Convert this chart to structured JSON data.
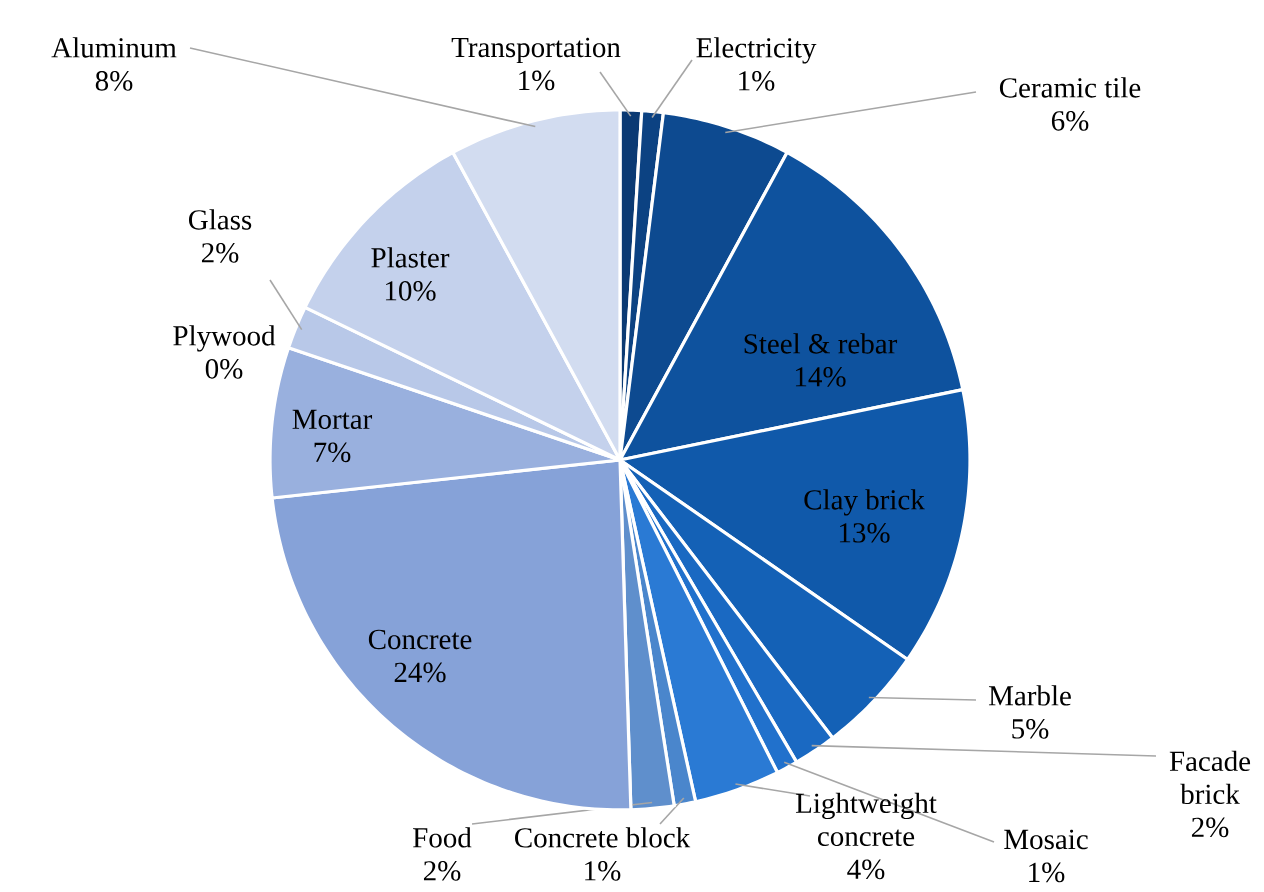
{
  "chart_data": {
    "type": "pie",
    "categories": [
      "Transportation",
      "Electricity",
      "Ceramic tile",
      "Steel & rebar",
      "Clay brick",
      "Marble",
      "Facade brick",
      "Mosaic",
      "Lightweight concrete",
      "Concrete block",
      "Food",
      "Concrete",
      "Mortar",
      "Plywood",
      "Glass",
      "Plaster",
      "Aluminum"
    ],
    "values": [
      1,
      1,
      6,
      14,
      13,
      5,
      2,
      1,
      4,
      1,
      2,
      24,
      7,
      0,
      2,
      10,
      8
    ],
    "value_labels": [
      "1%",
      "1%",
      "6%",
      "14%",
      "13%",
      "5%",
      "2%",
      "1%",
      "4%",
      "1%",
      "2%",
      "24%",
      "7%",
      "0%",
      "2%",
      "10%",
      "8%"
    ],
    "colors": [
      "#0b3a73",
      "#0c4282",
      "#0d4a90",
      "#0e529e",
      "#1059aa",
      "#1461b6",
      "#1a69c2",
      "#2171cc",
      "#2a7ad4",
      "#4a86cc",
      "#5f8fcc",
      "#86a2d8",
      "#99b0de",
      "#a9bde4",
      "#b8c8e8",
      "#c4d1ec",
      "#d2dcf0"
    ]
  }
}
